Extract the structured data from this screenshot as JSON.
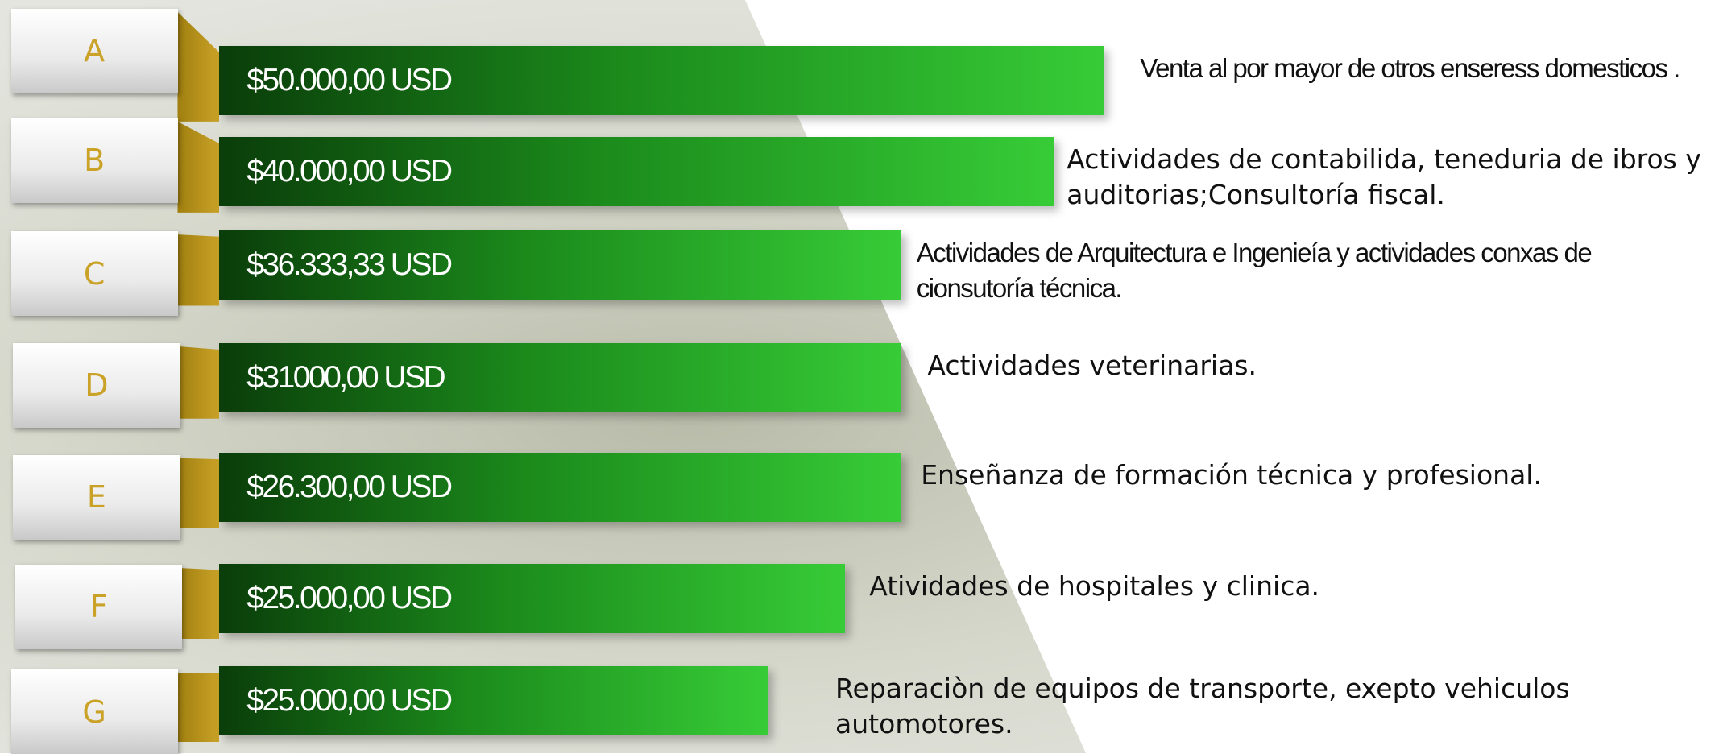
{
  "rows": [
    {
      "letter": "A",
      "amount": "$50.000,00 USD",
      "description": "Venta al por mayor de otros enseress domesticos ."
    },
    {
      "letter": "B",
      "amount": "$40.000,00 USD",
      "description": "Actividades de contabilida, teneduria de ibros y auditorias;Consultoría fiscal."
    },
    {
      "letter": "C",
      "amount": "$36.333,33 USD",
      "description": "Actividades de Arquitectura   e Ingenieía y actividades conxas de cionsutoría técnica."
    },
    {
      "letter": "D",
      "amount": "$31000,00 USD",
      "description": "Actividades veterinarias."
    },
    {
      "letter": "E",
      "amount": "$26.300,00 USD",
      "description": "Enseñanza de formación técnica y profesional."
    },
    {
      "letter": "F",
      "amount": "$25.000,00 USD",
      "description": "Atividades de hospitales y clinica."
    },
    {
      "letter": "G",
      "amount": "$25.000,00 USD",
      "description": "Reparaciòn de equipos de transporte, exepto vehiculos automotores."
    }
  ]
}
